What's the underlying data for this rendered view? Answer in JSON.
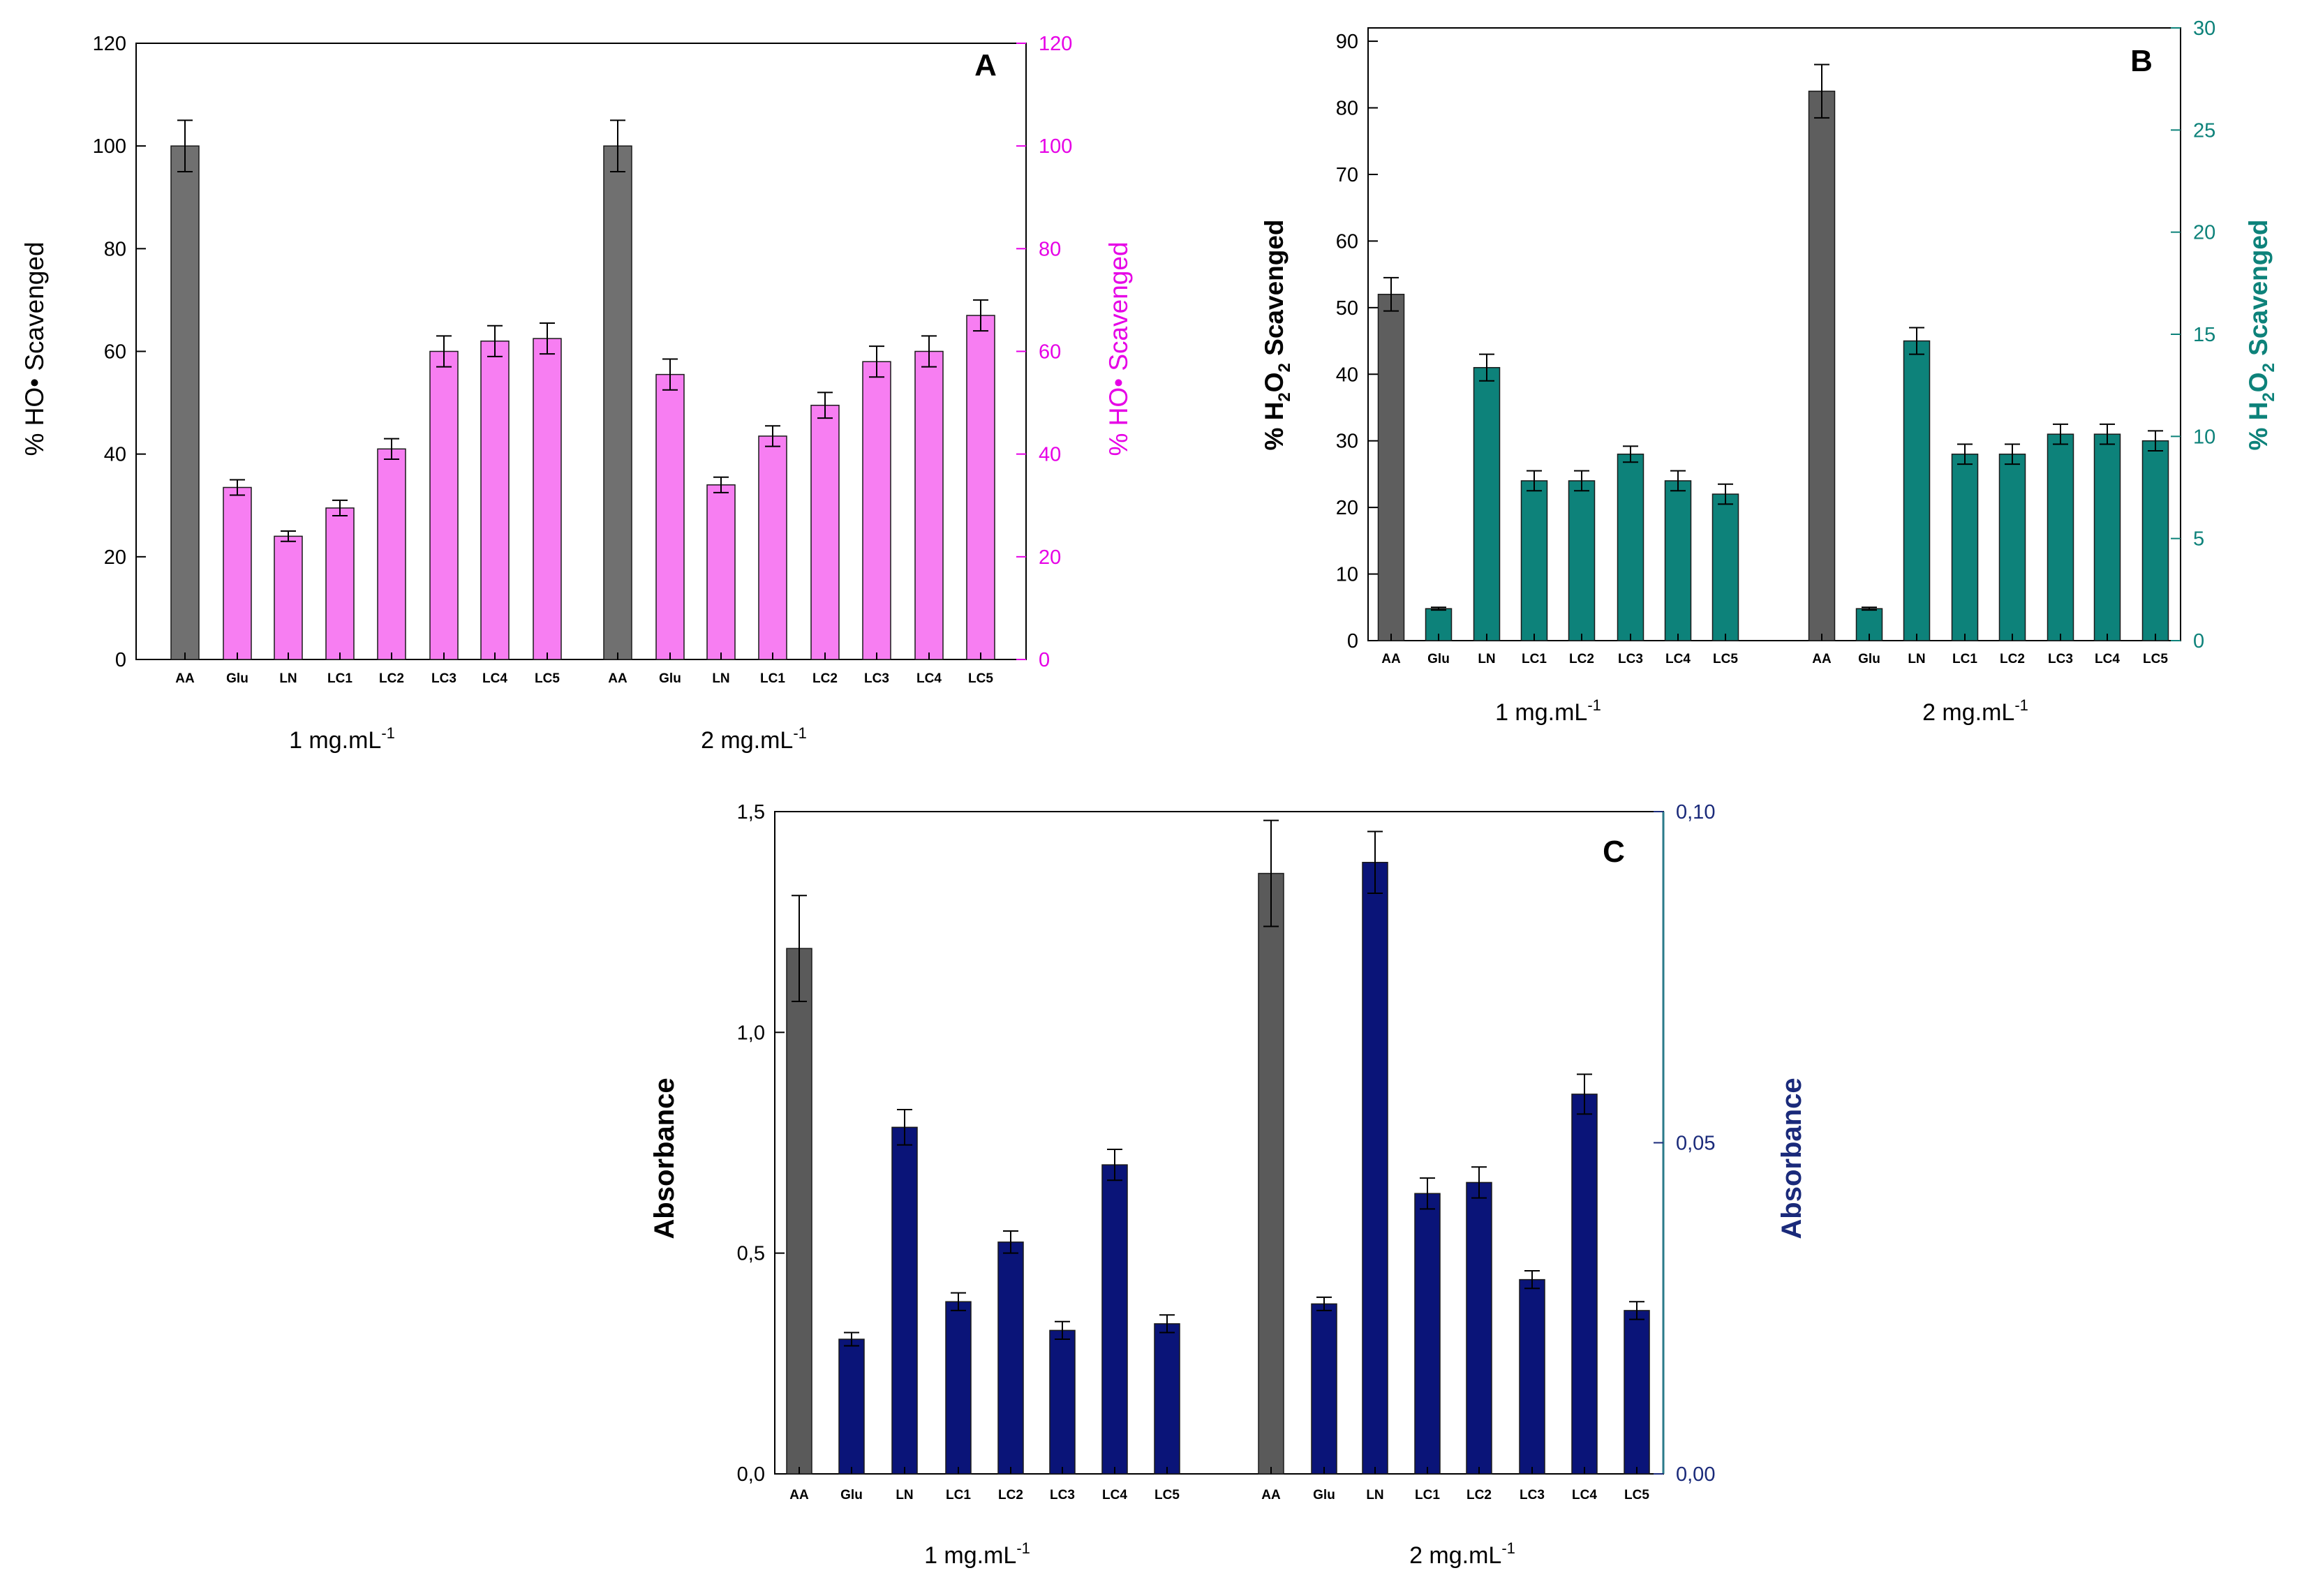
{
  "chart_data": [
    {
      "type": "bar",
      "panel": "A",
      "groups": [
        {
          "label": "1 mg.mL",
          "sup": "-1"
        },
        {
          "label": "2 mg.mL",
          "sup": "-1"
        }
      ],
      "categories": [
        "AA",
        "Glu",
        "LN",
        "LC1",
        "LC2",
        "LC3",
        "LC4",
        "LC5"
      ],
      "series": [
        {
          "name": "1 mg.mL-1",
          "values": [
            100,
            33.5,
            24,
            29.5,
            41,
            60,
            62,
            62.5
          ],
          "errors": [
            5,
            1.5,
            1,
            1.5,
            2,
            3,
            3,
            3
          ]
        },
        {
          "name": "2 mg.mL-1",
          "values": [
            100,
            55.5,
            34,
            43.5,
            49.5,
            58,
            60,
            67
          ],
          "errors": [
            5,
            3,
            1.5,
            2,
            2.5,
            3,
            3,
            3
          ]
        }
      ],
      "colors": {
        "reference": "#707070",
        "samples": "#f77ef2",
        "right_axis": "#e600e6"
      },
      "ylabel": "% HO• Scavenged",
      "ylabel_right": "% HO• Scavenged",
      "ylim": [
        0,
        120
      ],
      "yticks": [
        "0",
        "20",
        "40",
        "60",
        "80",
        "100",
        "120"
      ],
      "yticks_right": [
        "0",
        "20",
        "40",
        "60",
        "80",
        "100",
        "120"
      ]
    },
    {
      "type": "bar",
      "panel": "B",
      "groups": [
        {
          "label": "1 mg.mL",
          "sup": "-1"
        },
        {
          "label": "2 mg.mL",
          "sup": "-1"
        }
      ],
      "categories": [
        "AA",
        "Glu",
        "LN",
        "LC1",
        "LC2",
        "LC3",
        "LC4",
        "LC5"
      ],
      "series": [
        {
          "name": "1 mg.mL-1",
          "values": [
            52,
            4.8,
            41,
            24,
            24,
            28,
            24,
            22
          ],
          "errors": [
            2.5,
            0.2,
            2,
            1.5,
            1.5,
            1.2,
            1.5,
            1.5
          ]
        },
        {
          "name": "2 mg.mL-1",
          "values": [
            82.5,
            4.8,
            45,
            28,
            28,
            31,
            31,
            30
          ],
          "errors": [
            4,
            0.2,
            2,
            1.5,
            1.5,
            1.5,
            1.5,
            1.5
          ]
        }
      ],
      "colors": {
        "reference": "#5e5e5e",
        "samples": "#0d827a",
        "right_axis": "#0d827a"
      },
      "ylabel": "% H2O2 Scavenged",
      "ylabel_right": "% H2O2 Scavenged",
      "ylim": [
        0,
        92
      ],
      "yticks": [
        "0",
        "10",
        "20",
        "30",
        "40",
        "50",
        "60",
        "70",
        "80",
        "90"
      ],
      "ylim_right": [
        0,
        30
      ],
      "yticks_right": [
        "0",
        "5",
        "10",
        "15",
        "20",
        "25",
        "30"
      ]
    },
    {
      "type": "bar",
      "panel": "C",
      "groups": [
        {
          "label": "1 mg.mL",
          "sup": "-1"
        },
        {
          "label": "2 mg.mL",
          "sup": "-1"
        }
      ],
      "categories": [
        "AA",
        "Glu",
        "LN",
        "LC1",
        "LC2",
        "LC3",
        "LC4",
        "LC5"
      ],
      "series": [
        {
          "name": "1 mg.mL-1",
          "values": [
            1.19,
            0.305,
            0.785,
            0.39,
            0.525,
            0.325,
            0.7,
            0.34
          ],
          "errors": [
            0.12,
            0.015,
            0.04,
            0.02,
            0.025,
            0.02,
            0.035,
            0.02
          ]
        },
        {
          "name": "2 mg.mL-1",
          "values": [
            1.36,
            0.385,
            1.385,
            0.635,
            0.66,
            0.44,
            0.86,
            0.37
          ],
          "errors": [
            0.12,
            0.015,
            0.07,
            0.035,
            0.035,
            0.02,
            0.045,
            0.02
          ]
        }
      ],
      "colors": {
        "reference": "#5a5a5a",
        "samples": "#0a1478",
        "right_axis": "#1a2a7a",
        "right_axis_line": "#2a7a8a"
      },
      "ylabel": "Absorbance",
      "ylabel_right": "Absorbance",
      "ylim": [
        0,
        1.5
      ],
      "yticks": [
        "0,0",
        "0,5",
        "1,0",
        "1,5"
      ],
      "ylim_right": [
        0,
        0.1
      ],
      "yticks_right": [
        "0,00",
        "0,05",
        "0,10"
      ]
    }
  ]
}
